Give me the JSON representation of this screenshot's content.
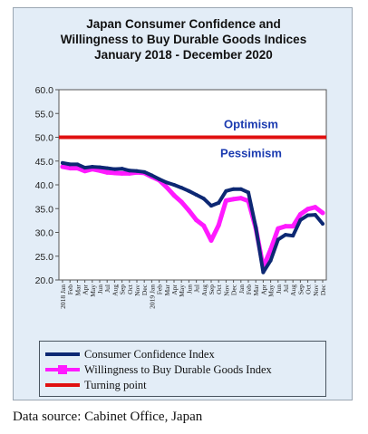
{
  "chart_data": {
    "type": "line",
    "title": [
      "Japan Consumer Confidence and",
      "Willingness to Buy Durable Goods Indices",
      "January 2018 - December  2020"
    ],
    "ylim": [
      20,
      60
    ],
    "yticks": [
      "60.0",
      "55.0",
      "50.0",
      "45.0",
      "40.0",
      "35.0",
      "30.0",
      "25.0",
      "20.0"
    ],
    "ytick_values": [
      60,
      55,
      50,
      45,
      40,
      35,
      30,
      25,
      20
    ],
    "xlabels": [
      "2018 Jan",
      "Feb",
      "Mar",
      "Apr",
      "May",
      "Jun",
      "Jul",
      "Aug",
      "Sep",
      "Oct",
      "Nov",
      "Dec",
      "2019 Jan",
      "Feb",
      "Mar",
      "Apr",
      "May",
      "Jun",
      "Jul",
      "Aug",
      "Sep",
      "Oct",
      "Nov",
      "Dec",
      "Jan",
      "Feb",
      "Mar",
      "Apr",
      "May",
      "Jun",
      "Jul",
      "Aug",
      "Sep",
      "Oct",
      "Nov",
      "Dec"
    ],
    "annotations": {
      "optimism": "Optimism",
      "pessimism": "Pessimism"
    },
    "series": [
      {
        "name": "Consumer Confidence Index",
        "color": "#0d2873",
        "values": [
          44.6,
          44.3,
          44.3,
          43.6,
          43.8,
          43.7,
          43.5,
          43.3,
          43.4,
          43.0,
          42.9,
          42.7,
          42.0,
          41.2,
          40.5,
          40.0,
          39.4,
          38.7,
          37.9,
          37.1,
          35.6,
          36.2,
          38.7,
          39.1,
          39.1,
          38.4,
          31.1,
          21.6,
          24.1,
          28.5,
          29.5,
          29.3,
          32.6,
          33.6,
          33.7,
          31.8
        ]
      },
      {
        "name": "Willingness to Buy Durable Goods Index",
        "color": "#ff1aff",
        "values": [
          43.8,
          43.5,
          43.5,
          42.9,
          43.3,
          43.0,
          42.6,
          42.5,
          42.4,
          42.4,
          42.6,
          42.5,
          41.7,
          41.0,
          39.5,
          37.8,
          36.4,
          34.6,
          32.6,
          31.4,
          28.3,
          31.5,
          36.7,
          37.0,
          37.2,
          36.6,
          30.9,
          22.7,
          26.4,
          30.8,
          31.3,
          31.3,
          33.8,
          34.9,
          35.3,
          34.1
        ]
      },
      {
        "name": "Turning point",
        "color": "#e01010",
        "values": [
          50,
          50,
          50,
          50,
          50,
          50,
          50,
          50,
          50,
          50,
          50,
          50,
          50,
          50,
          50,
          50,
          50,
          50,
          50,
          50,
          50,
          50,
          50,
          50,
          50,
          50,
          50,
          50,
          50,
          50,
          50,
          50,
          50,
          50,
          50,
          50
        ]
      }
    ],
    "legend_position": "bottom"
  },
  "source": "Data source: Cabinet Office, Japan"
}
